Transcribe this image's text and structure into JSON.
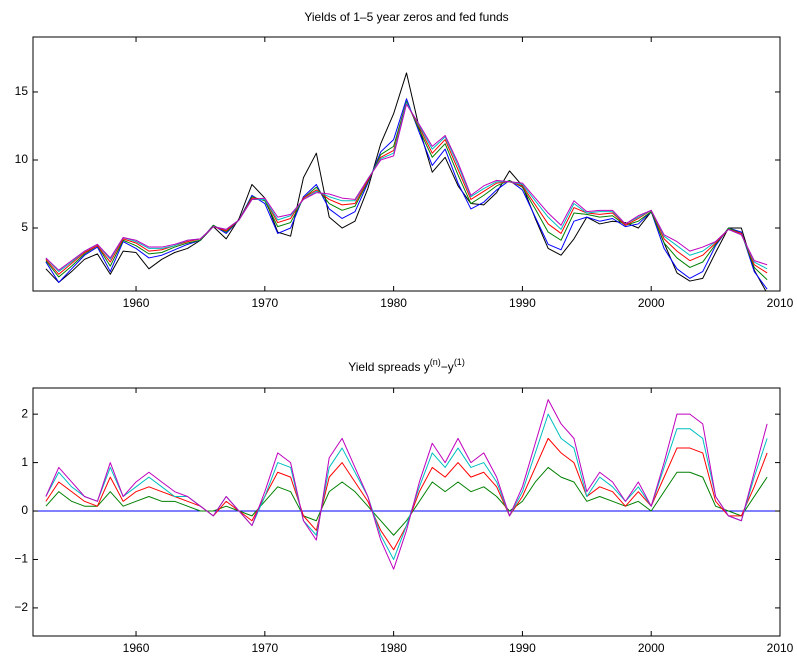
{
  "chart_data": [
    {
      "type": "line",
      "title": "Yields of 1–5 year zeros and fed funds",
      "x": [
        1953,
        1954,
        1955,
        1956,
        1957,
        1958,
        1959,
        1960,
        1961,
        1962,
        1963,
        1964,
        1965,
        1966,
        1967,
        1968,
        1969,
        1970,
        1971,
        1972,
        1973,
        1974,
        1975,
        1976,
        1977,
        1978,
        1979,
        1980,
        1981,
        1982,
        1983,
        1984,
        1985,
        1986,
        1987,
        1988,
        1989,
        1990,
        1991,
        1992,
        1993,
        1994,
        1995,
        1996,
        1997,
        1998,
        1999,
        2000,
        2001,
        2002,
        2003,
        2004,
        2005,
        2006,
        2007,
        2008,
        2009
      ],
      "xlim": [
        1952,
        2010
      ],
      "xticks": [
        1960,
        1970,
        1980,
        1990,
        2000,
        2010
      ],
      "ylim": [
        0.37,
        19.04
      ],
      "yticks": [
        5,
        10,
        15
      ],
      "series": [
        {
          "color": "#000000",
          "values": [
            2.0,
            1.0,
            1.8,
            2.7,
            3.1,
            1.6,
            3.3,
            3.2,
            2.0,
            2.7,
            3.2,
            3.5,
            4.1,
            5.1,
            4.2,
            5.7,
            8.2,
            7.2,
            4.7,
            4.4,
            8.7,
            10.5,
            5.8,
            5.0,
            5.5,
            7.9,
            11.2,
            13.4,
            16.4,
            12.3,
            9.1,
            10.2,
            8.1,
            6.8,
            6.7,
            7.6,
            9.2,
            8.1,
            5.7,
            3.5,
            3.0,
            4.2,
            5.8,
            5.3,
            5.5,
            5.4,
            5.0,
            6.2,
            3.9,
            1.7,
            1.1,
            1.3,
            3.2,
            5.0,
            5.0,
            1.9,
            0.2
          ]
        },
        {
          "color": "#0000ff",
          "values": [
            2.5,
            1.0,
            2.0,
            3.0,
            3.6,
            1.8,
            4.0,
            3.5,
            2.8,
            3.0,
            3.4,
            3.8,
            4.1,
            5.2,
            4.6,
            5.6,
            7.4,
            6.8,
            4.6,
            5.0,
            7.3,
            8.2,
            6.4,
            5.7,
            6.2,
            8.3,
            10.6,
            11.5,
            14.5,
            12.0,
            9.6,
            10.8,
            8.3,
            6.4,
            6.9,
            7.8,
            8.5,
            7.8,
            5.8,
            3.8,
            3.4,
            5.5,
            5.8,
            5.5,
            5.7,
            5.1,
            5.3,
            6.2,
            3.5,
            2.0,
            1.3,
            1.8,
            3.7,
            5.0,
            4.7,
            1.8,
            0.5
          ]
        },
        {
          "color": "#008000",
          "values": [
            2.6,
            1.4,
            2.2,
            3.1,
            3.7,
            2.2,
            4.1,
            3.7,
            3.1,
            3.2,
            3.6,
            3.9,
            4.1,
            5.2,
            4.7,
            5.6,
            7.3,
            7.0,
            5.1,
            5.4,
            7.2,
            8.0,
            6.8,
            6.3,
            6.6,
            8.4,
            10.4,
            11.0,
            14.3,
            12.2,
            10.2,
            11.2,
            8.9,
            6.8,
            7.4,
            8.1,
            8.5,
            8.0,
            6.4,
            4.7,
            4.1,
            6.1,
            6.0,
            5.8,
            5.9,
            5.2,
            5.5,
            6.2,
            3.9,
            2.8,
            2.1,
            2.5,
            3.8,
            5.0,
            4.6,
            2.1,
            1.2
          ]
        },
        {
          "color": "#ff0000",
          "values": [
            2.7,
            1.6,
            2.4,
            3.2,
            3.7,
            2.5,
            4.2,
            3.9,
            3.3,
            3.4,
            3.7,
            4.0,
            4.2,
            5.1,
            4.8,
            5.6,
            7.2,
            7.1,
            5.4,
            5.7,
            7.2,
            7.8,
            7.1,
            6.7,
            6.8,
            8.5,
            10.2,
            10.7,
            14.2,
            12.4,
            10.5,
            11.5,
            9.3,
            7.1,
            7.7,
            8.3,
            8.4,
            8.1,
            6.7,
            5.3,
            4.6,
            6.5,
            6.1,
            6.0,
            6.1,
            5.2,
            5.7,
            6.3,
            4.2,
            3.3,
            2.6,
            3.0,
            3.9,
            4.9,
            4.6,
            2.3,
            1.7
          ]
        },
        {
          "color": "#00bfbf",
          "values": [
            2.8,
            1.8,
            2.5,
            3.3,
            3.8,
            2.7,
            4.3,
            4.0,
            3.5,
            3.5,
            3.7,
            4.1,
            4.2,
            5.1,
            4.9,
            5.6,
            7.1,
            7.1,
            5.6,
            5.9,
            7.1,
            7.7,
            7.3,
            7.0,
            7.0,
            8.6,
            10.1,
            10.5,
            14.2,
            12.5,
            10.8,
            11.7,
            9.6,
            7.3,
            7.9,
            8.4,
            8.4,
            8.2,
            7.0,
            5.8,
            4.9,
            6.8,
            6.1,
            6.2,
            6.2,
            5.3,
            5.8,
            6.3,
            4.4,
            3.7,
            3.0,
            3.3,
            4.0,
            4.9,
            4.5,
            2.5,
            2.0
          ]
        },
        {
          "color": "#bf00bf",
          "values": [
            2.8,
            1.9,
            2.6,
            3.3,
            3.8,
            2.8,
            4.3,
            4.1,
            3.6,
            3.6,
            3.8,
            4.1,
            4.2,
            5.1,
            4.9,
            5.6,
            7.1,
            7.2,
            5.8,
            6.0,
            7.1,
            7.6,
            7.5,
            7.2,
            7.1,
            8.6,
            10.0,
            10.3,
            14.1,
            12.6,
            11.0,
            11.8,
            9.8,
            7.4,
            8.1,
            8.5,
            8.4,
            8.3,
            7.2,
            6.1,
            5.2,
            7.0,
            6.2,
            6.3,
            6.3,
            5.3,
            5.9,
            6.3,
            4.5,
            4.0,
            3.3,
            3.6,
            4.0,
            4.9,
            4.5,
            2.6,
            2.3
          ]
        }
      ]
    },
    {
      "type": "line",
      "title": [
        "Yield spreads y",
        "(n)",
        "−y",
        "(1)"
      ],
      "x": [
        1953,
        1954,
        1955,
        1956,
        1957,
        1958,
        1959,
        1960,
        1961,
        1962,
        1963,
        1964,
        1965,
        1966,
        1967,
        1968,
        1969,
        1970,
        1971,
        1972,
        1973,
        1974,
        1975,
        1976,
        1977,
        1978,
        1979,
        1980,
        1981,
        1982,
        1983,
        1984,
        1985,
        1986,
        1987,
        1988,
        1989,
        1990,
        1991,
        1992,
        1993,
        1994,
        1995,
        1996,
        1997,
        1998,
        1999,
        2000,
        2001,
        2002,
        2003,
        2004,
        2005,
        2006,
        2007,
        2008,
        2009
      ],
      "xlim": [
        1952,
        2010
      ],
      "xticks": [
        1960,
        1970,
        1980,
        1990,
        2000,
        2010
      ],
      "ylim": [
        -2.58,
        2.54
      ],
      "yticks": [
        {
          "value": -2,
          "label": "−2"
        },
        {
          "value": -1,
          "label": "−1"
        },
        0,
        1,
        2
      ],
      "hline": 0,
      "hline_color": "#0000ff",
      "series": [
        {
          "color": "#008000",
          "values": [
            0.1,
            0.4,
            0.2,
            0.1,
            0.1,
            0.4,
            0.1,
            0.2,
            0.3,
            0.2,
            0.2,
            0.1,
            0,
            0,
            0.1,
            0,
            -0.1,
            0.2,
            0.5,
            0.4,
            -0.1,
            -0.2,
            0.4,
            0.6,
            0.4,
            0.1,
            -0.2,
            -0.5,
            -0.2,
            0.2,
            0.6,
            0.4,
            0.6,
            0.4,
            0.5,
            0.3,
            0,
            0.2,
            0.6,
            0.9,
            0.7,
            0.6,
            0.2,
            0.3,
            0.2,
            0.1,
            0.2,
            0,
            0.4,
            0.8,
            0.8,
            0.7,
            0.1,
            0,
            -0.1,
            0.3,
            0.7
          ]
        },
        {
          "color": "#ff0000",
          "values": [
            0.2,
            0.6,
            0.4,
            0.2,
            0.1,
            0.7,
            0.2,
            0.4,
            0.5,
            0.4,
            0.3,
            0.2,
            0.1,
            -0.1,
            0.2,
            0,
            -0.2,
            0.3,
            0.8,
            0.7,
            -0.1,
            -0.4,
            0.7,
            1.0,
            0.6,
            0.2,
            -0.4,
            -0.8,
            -0.3,
            0.4,
            0.9,
            0.7,
            1.0,
            0.7,
            0.8,
            0.5,
            -0.1,
            0.3,
            0.9,
            1.5,
            1.2,
            1.0,
            0.3,
            0.5,
            0.4,
            0.1,
            0.4,
            0.1,
            0.7,
            1.3,
            1.3,
            1.2,
            0.2,
            -0.1,
            -0.1,
            0.5,
            1.2
          ]
        },
        {
          "color": "#00bfbf",
          "values": [
            0.3,
            0.8,
            0.5,
            0.3,
            0.2,
            0.9,
            0.3,
            0.5,
            0.7,
            0.5,
            0.3,
            0.3,
            0.1,
            -0.1,
            0.3,
            0,
            -0.3,
            0.3,
            1.0,
            0.9,
            -0.2,
            -0.5,
            0.9,
            1.3,
            0.8,
            0.3,
            -0.5,
            -1.0,
            -0.3,
            0.5,
            1.2,
            0.9,
            1.3,
            0.9,
            1.0,
            0.6,
            -0.1,
            0.4,
            1.2,
            2.0,
            1.5,
            1.3,
            0.3,
            0.7,
            0.5,
            0.2,
            0.5,
            0.1,
            0.9,
            1.7,
            1.7,
            1.5,
            0.3,
            -0.1,
            -0.2,
            0.7,
            1.5
          ]
        },
        {
          "color": "#bf00bf",
          "values": [
            0.3,
            0.9,
            0.6,
            0.3,
            0.2,
            1.0,
            0.3,
            0.6,
            0.8,
            0.6,
            0.4,
            0.3,
            0.1,
            -0.1,
            0.3,
            0.0,
            -0.3,
            0.4,
            1.2,
            1.0,
            -0.2,
            -0.6,
            1.1,
            1.5,
            0.9,
            0.3,
            -0.6,
            -1.2,
            -0.4,
            0.6,
            1.4,
            1.0,
            1.5,
            1.0,
            1.2,
            0.7,
            -0.1,
            0.5,
            1.4,
            2.3,
            1.8,
            1.5,
            0.4,
            0.8,
            0.6,
            0.2,
            0.6,
            0.1,
            1.0,
            2.0,
            2.0,
            1.8,
            0.3,
            -0.1,
            -0.2,
            0.8,
            1.8
          ]
        }
      ]
    }
  ]
}
